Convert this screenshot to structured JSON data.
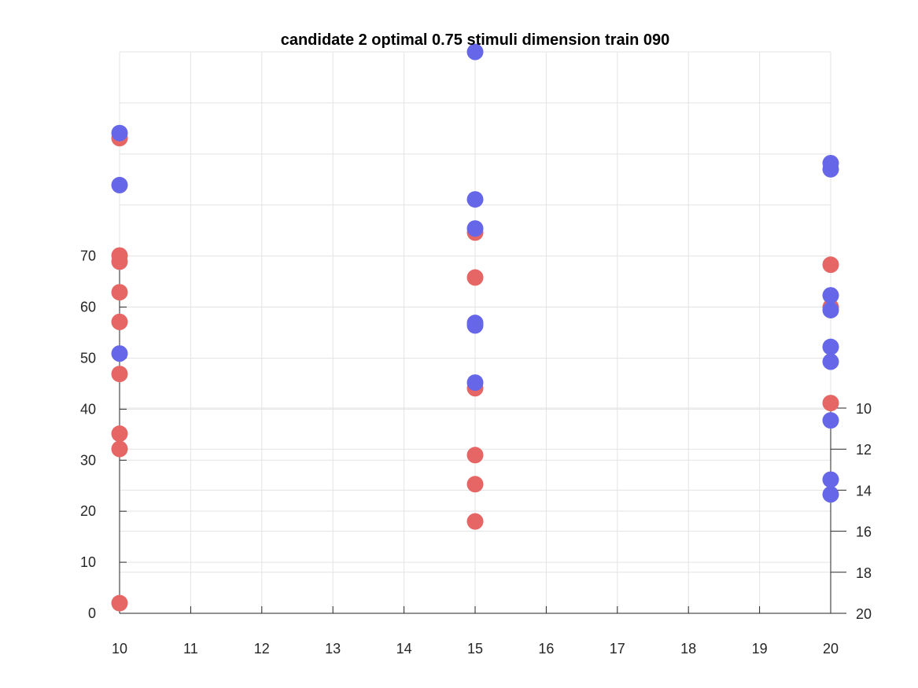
{
  "chart_data": {
    "type": "scatter",
    "title": "candidate 2 optimal 0.75 stimuli dimension train 090",
    "xlabel": "",
    "ylabel": "",
    "xlim": [
      10,
      20
    ],
    "x_ticks": [
      10,
      11,
      12,
      13,
      14,
      15,
      16,
      17,
      18,
      19,
      20
    ],
    "ylim_left": [
      0,
      110
    ],
    "y_ticks_left": [
      0,
      10,
      20,
      30,
      40,
      50,
      60,
      70
    ],
    "ylim_right": [
      20,
      10
    ],
    "y_ticks_right": [
      10,
      12,
      14,
      16,
      18,
      20
    ],
    "grid": true,
    "legend": "none",
    "series": [
      {
        "color": "#e66565",
        "points": [
          {
            "x": 10,
            "y": 2
          },
          {
            "x": 10,
            "y": 32.2
          },
          {
            "x": 10,
            "y": 35.2
          },
          {
            "x": 10,
            "y": 46.9
          },
          {
            "x": 10,
            "y": 57.1
          },
          {
            "x": 10,
            "y": 62.9
          },
          {
            "x": 10,
            "y": 68.9
          },
          {
            "x": 10,
            "y": 70.1
          },
          {
            "x": 10,
            "y": 93.1
          },
          {
            "x": 15,
            "y": 18
          },
          {
            "x": 15,
            "y": 25.3
          },
          {
            "x": 15,
            "y": 31
          },
          {
            "x": 15,
            "y": 44.1
          },
          {
            "x": 15,
            "y": 65.8
          },
          {
            "x": 15,
            "y": 74.6
          },
          {
            "x": 20,
            "y": 41.2
          },
          {
            "x": 20,
            "y": 60
          },
          {
            "x": 20,
            "y": 68.3
          }
        ]
      },
      {
        "color": "#6666e8",
        "points": [
          {
            "x": 10,
            "y": 50.9
          },
          {
            "x": 10,
            "y": 83.9
          },
          {
            "x": 10,
            "y": 94.1
          },
          {
            "x": 15,
            "y": 45.2
          },
          {
            "x": 15,
            "y": 56.4
          },
          {
            "x": 15,
            "y": 56.9
          },
          {
            "x": 15,
            "y": 75.4
          },
          {
            "x": 15,
            "y": 81.1
          },
          {
            "x": 15,
            "y": 110
          },
          {
            "x": 20,
            "y": 23.3
          },
          {
            "x": 20,
            "y": 26.2
          },
          {
            "x": 20,
            "y": 37.8
          },
          {
            "x": 20,
            "y": 49.3
          },
          {
            "x": 20,
            "y": 52.2
          },
          {
            "x": 20,
            "y": 59.4
          },
          {
            "x": 20,
            "y": 62.3
          },
          {
            "x": 20,
            "y": 87
          },
          {
            "x": 20,
            "y": 88.2
          }
        ]
      }
    ]
  }
}
